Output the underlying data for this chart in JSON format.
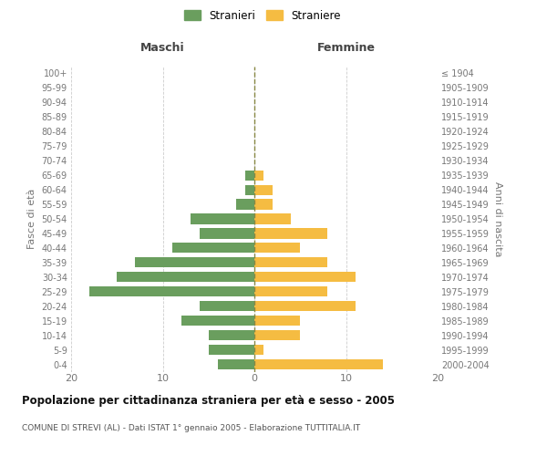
{
  "age_groups": [
    "0-4",
    "5-9",
    "10-14",
    "15-19",
    "20-24",
    "25-29",
    "30-34",
    "35-39",
    "40-44",
    "45-49",
    "50-54",
    "55-59",
    "60-64",
    "65-69",
    "70-74",
    "75-79",
    "80-84",
    "85-89",
    "90-94",
    "95-99",
    "100+"
  ],
  "birth_years": [
    "2000-2004",
    "1995-1999",
    "1990-1994",
    "1985-1989",
    "1980-1984",
    "1975-1979",
    "1970-1974",
    "1965-1969",
    "1960-1964",
    "1955-1959",
    "1950-1954",
    "1945-1949",
    "1940-1944",
    "1935-1939",
    "1930-1934",
    "1925-1929",
    "1920-1924",
    "1915-1919",
    "1910-1914",
    "1905-1909",
    "≤ 1904"
  ],
  "maschi": [
    4,
    5,
    5,
    8,
    6,
    18,
    15,
    13,
    9,
    6,
    7,
    2,
    1,
    1,
    0,
    0,
    0,
    0,
    0,
    0,
    0
  ],
  "femmine": [
    14,
    1,
    5,
    5,
    11,
    8,
    11,
    8,
    5,
    8,
    4,
    2,
    2,
    1,
    0,
    0,
    0,
    0,
    0,
    0,
    0
  ],
  "color_maschi": "#6a9e5e",
  "color_femmine": "#f5bc42",
  "title": "Popolazione per cittadinanza straniera per età e sesso - 2005",
  "subtitle": "COMUNE DI STREVI (AL) - Dati ISTAT 1° gennaio 2005 - Elaborazione TUTTITALIA.IT",
  "ylabel_left": "Fasce di età",
  "ylabel_right": "Anni di nascita",
  "xlabel_left": "Maschi",
  "xlabel_right": "Femmine",
  "legend_maschi": "Stranieri",
  "legend_femmine": "Straniere",
  "xlim": 20,
  "background_color": "#ffffff",
  "grid_color": "#cccccc"
}
